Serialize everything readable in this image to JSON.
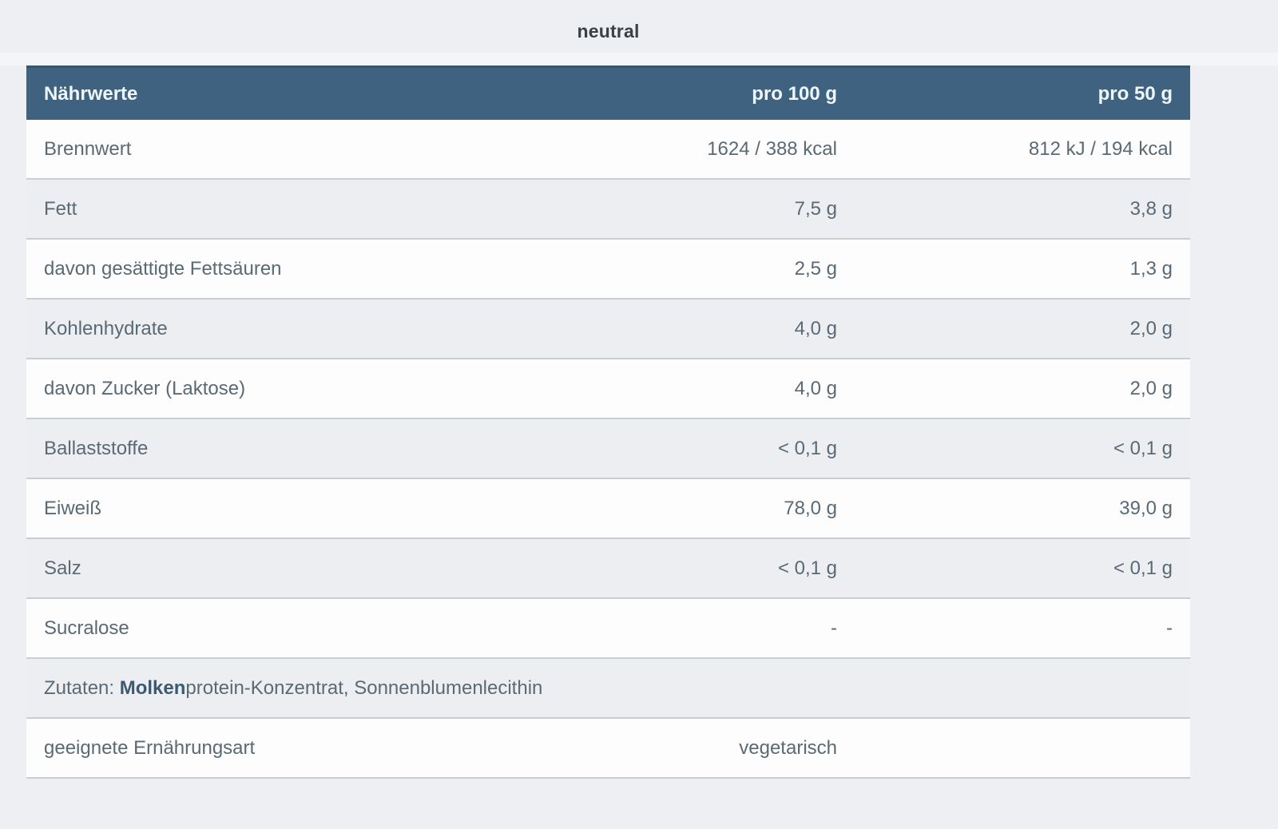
{
  "title": "neutral",
  "colors": {
    "header_bg": "#3e6280",
    "header_border_top": "#33556d",
    "header_text": "#eff6f9",
    "row_light_bg": "#fdfdfe",
    "row_dark_bg": "#edeef2",
    "row_separator": "#c9ced3",
    "body_text": "#5a6a75",
    "title_text": "#3c4044",
    "page_bg": "#edeff2"
  },
  "table": {
    "header": {
      "label": "Nährwerte",
      "per100": "pro 100 g",
      "per50": "pro 50 g"
    },
    "rows": [
      {
        "label": "Brennwert",
        "per100": "1624 / 388 kcal",
        "per50": "812 kJ / 194 kcal"
      },
      {
        "label": "Fett",
        "per100": "7,5 g",
        "per50": "3,8 g"
      },
      {
        "label": "davon gesättigte Fettsäuren",
        "per100": "2,5 g",
        "per50": "1,3 g"
      },
      {
        "label": "Kohlenhydrate",
        "per100": "4,0 g",
        "per50": "2,0 g"
      },
      {
        "label": "davon Zucker (Laktose)",
        "per100": "4,0 g",
        "per50": "2,0 g"
      },
      {
        "label": "Ballaststoffe",
        "per100": "< 0,1 g",
        "per50": "< 0,1 g"
      },
      {
        "label": "Eiweiß",
        "per100": "78,0 g",
        "per50": "39,0 g"
      },
      {
        "label": "Salz",
        "per100": "< 0,1 g",
        "per50": "< 0,1 g"
      },
      {
        "label": "Sucralose",
        "per100": "-",
        "per50": "-"
      }
    ],
    "ingredients": {
      "prefix": "Zutaten: ",
      "bold": "Molken",
      "rest": "protein-Konzentrat, Sonnenblumenlecithin"
    },
    "diet": {
      "label": "geeignete Ernährungsart",
      "value": "vegetarisch"
    }
  }
}
